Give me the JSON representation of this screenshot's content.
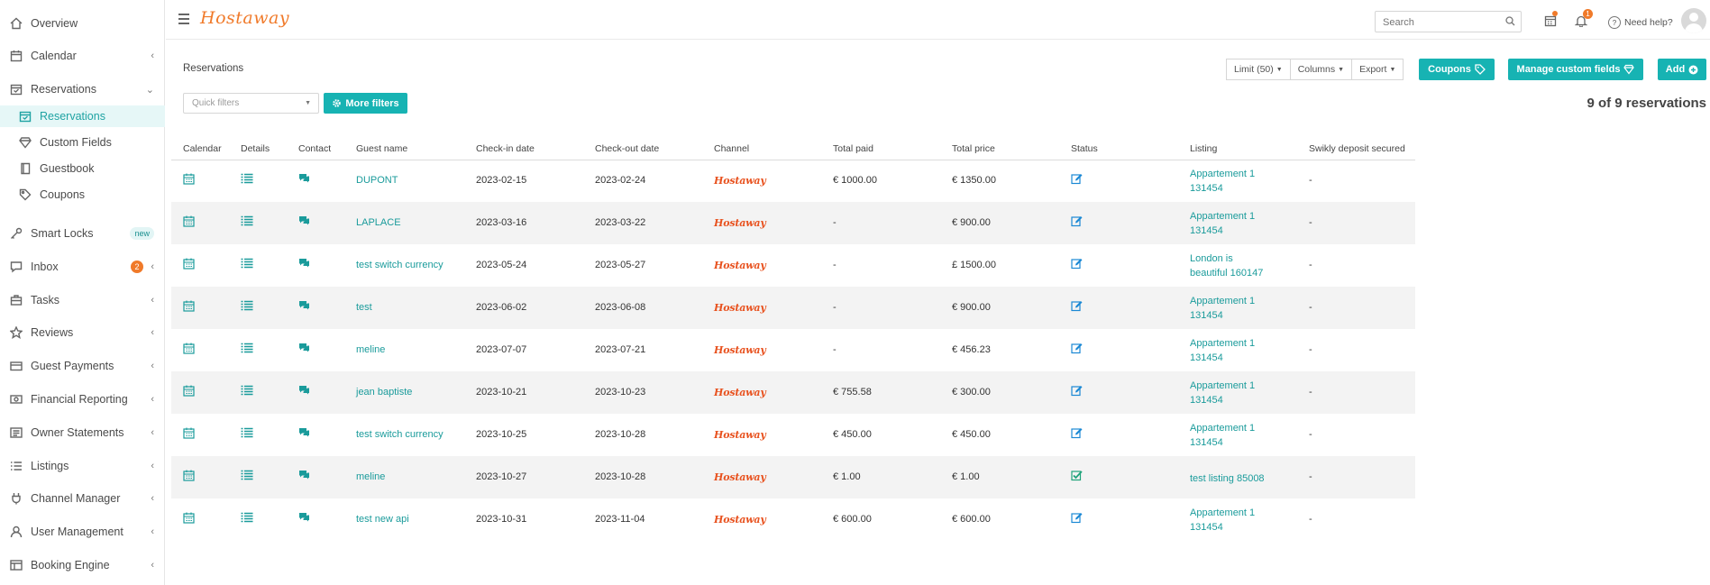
{
  "app": {
    "logo": "Hostaway"
  },
  "sidebar": {
    "items": [
      {
        "label": "Overview",
        "icon": "home-icon"
      },
      {
        "label": "Calendar",
        "icon": "calendar-icon",
        "chevron": "‹"
      },
      {
        "label": "Reservations",
        "icon": "calendar-check-icon",
        "chevron": "⌄"
      },
      {
        "label": "Reservations",
        "icon": "calendar-check-icon",
        "active": true
      },
      {
        "label": "Custom Fields",
        "icon": "diamond-icon"
      },
      {
        "label": "Guestbook",
        "icon": "book-icon"
      },
      {
        "label": "Coupons",
        "icon": "tag-icon"
      },
      {
        "label": "Smart Locks",
        "icon": "key-icon",
        "badge": "new"
      },
      {
        "label": "Inbox",
        "icon": "chat-icon",
        "count": "2",
        "chevron": "‹"
      },
      {
        "label": "Tasks",
        "icon": "briefcase-icon",
        "chevron": "‹"
      },
      {
        "label": "Reviews",
        "icon": "star-icon",
        "chevron": "‹"
      },
      {
        "label": "Guest Payments",
        "icon": "card-icon",
        "chevron": "‹"
      },
      {
        "label": "Financial Reporting",
        "icon": "money-icon",
        "chevron": "‹"
      },
      {
        "label": "Owner Statements",
        "icon": "statement-icon",
        "chevron": "‹"
      },
      {
        "label": "Listings",
        "icon": "list-icon",
        "chevron": "‹"
      },
      {
        "label": "Channel Manager",
        "icon": "plug-icon",
        "chevron": "‹"
      },
      {
        "label": "User Management",
        "icon": "user-icon",
        "chevron": "‹"
      },
      {
        "label": "Booking Engine",
        "icon": "window-icon",
        "chevron": "‹"
      }
    ]
  },
  "header": {
    "search_placeholder": "Search",
    "notification_count": "1",
    "help_label": "Need help?"
  },
  "toolbar": {
    "page_title": "Reservations",
    "limit_label": "Limit (50)",
    "columns_label": "Columns",
    "export_label": "Export",
    "coupons_label": "Coupons",
    "custom_fields_label": "Manage custom fields",
    "add_label": "Add",
    "quick_filters_placeholder": "Quick filters",
    "more_filters_label": "More filters",
    "count_label": "9 of 9 reservations"
  },
  "table": {
    "columns": [
      "Calendar",
      "Details",
      "Contact",
      "Guest name",
      "Check-in date",
      "Check-out date",
      "Channel",
      "Total paid",
      "Total price",
      "Status",
      "Listing",
      "Swikly deposit secured"
    ],
    "rows": [
      {
        "guest": "DUPONT",
        "checkin": "2023-02-15",
        "checkout": "2023-02-24",
        "channel": "Hostaway",
        "paid": "€ 1000.00",
        "price": "€ 1350.00",
        "status": "edit",
        "listing": "Appartement 1 131454",
        "deposit": "-"
      },
      {
        "guest": "LAPLACE",
        "checkin": "2023-03-16",
        "checkout": "2023-03-22",
        "channel": "Hostaway",
        "paid": "-",
        "price": "€ 900.00",
        "status": "edit",
        "listing": "Appartement 1 131454",
        "deposit": "-"
      },
      {
        "guest": "test switch currency",
        "checkin": "2023-05-24",
        "checkout": "2023-05-27",
        "channel": "Hostaway",
        "paid": "-",
        "price": "£ 1500.00",
        "status": "edit",
        "listing": "London is beautiful 160147",
        "deposit": "-"
      },
      {
        "guest": "test",
        "checkin": "2023-06-02",
        "checkout": "2023-06-08",
        "channel": "Hostaway",
        "paid": "-",
        "price": "€ 900.00",
        "status": "edit",
        "listing": "Appartement 1 131454",
        "deposit": "-"
      },
      {
        "guest": "meline",
        "checkin": "2023-07-07",
        "checkout": "2023-07-21",
        "channel": "Hostaway",
        "paid": "-",
        "price": "€ 456.23",
        "status": "edit",
        "listing": "Appartement 1 131454",
        "deposit": "-"
      },
      {
        "guest": "jean baptiste",
        "checkin": "2023-10-21",
        "checkout": "2023-10-23",
        "channel": "Hostaway",
        "paid": "€ 755.58",
        "price": "€ 300.00",
        "status": "edit",
        "listing": "Appartement 1 131454",
        "deposit": "-"
      },
      {
        "guest": "test switch currency",
        "checkin": "2023-10-25",
        "checkout": "2023-10-28",
        "channel": "Hostaway",
        "paid": "€ 450.00",
        "price": "€ 450.00",
        "status": "edit",
        "listing": "Appartement 1 131454",
        "deposit": "-"
      },
      {
        "guest": "meline",
        "checkin": "2023-10-27",
        "checkout": "2023-10-28",
        "channel": "Hostaway",
        "paid": "€ 1.00",
        "price": "€ 1.00",
        "status": "checked",
        "listing": "test listing 85008",
        "deposit": "-"
      },
      {
        "guest": "test new api",
        "checkin": "2023-10-31",
        "checkout": "2023-11-04",
        "channel": "Hostaway",
        "paid": "€ 600.00",
        "price": "€ 600.00",
        "status": "edit",
        "listing": "Appartement 1 131454",
        "deposit": "-"
      }
    ]
  },
  "colors": {
    "accent": "#17b3b3",
    "link": "#1a9b9b",
    "brand": "#f07a2a",
    "channel": "#e8521f"
  }
}
